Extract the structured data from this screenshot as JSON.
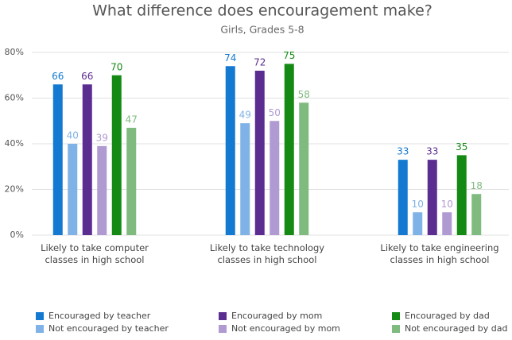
{
  "chart_data": {
    "type": "bar",
    "title": "What difference does encouragement make?",
    "subtitle": "Girls, Grades 5-8",
    "categories": [
      "Likely to take computer classes in high school",
      "Likely to take technology classes in high school",
      "Likely to take engineering classes in high school"
    ],
    "series": [
      {
        "name": "Encouraged by teacher",
        "color": "#1479d0",
        "values": [
          66,
          74,
          33
        ]
      },
      {
        "name": "Not encouraged by teacher",
        "color": "#7fb2e6",
        "values": [
          40,
          49,
          10
        ]
      },
      {
        "name": "Encouraged by mom",
        "color": "#5b2d91",
        "values": [
          66,
          72,
          33
        ]
      },
      {
        "name": "Not encouraged by mom",
        "color": "#b09ad2",
        "values": [
          39,
          50,
          10
        ]
      },
      {
        "name": "Encouraged by dad",
        "color": "#148a14",
        "values": [
          70,
          75,
          35
        ]
      },
      {
        "name": "Not encouraged by dad",
        "color": "#7fba7f",
        "values": [
          47,
          58,
          18
        ]
      }
    ],
    "ylim": [
      0,
      80
    ],
    "yticks": [
      {
        "value": 0,
        "label": "0%"
      },
      {
        "value": 20,
        "label": "20%"
      },
      {
        "value": 40,
        "label": "40%"
      },
      {
        "value": 60,
        "label": "60%"
      },
      {
        "value": 80,
        "label": "80%"
      }
    ],
    "grid": true
  }
}
